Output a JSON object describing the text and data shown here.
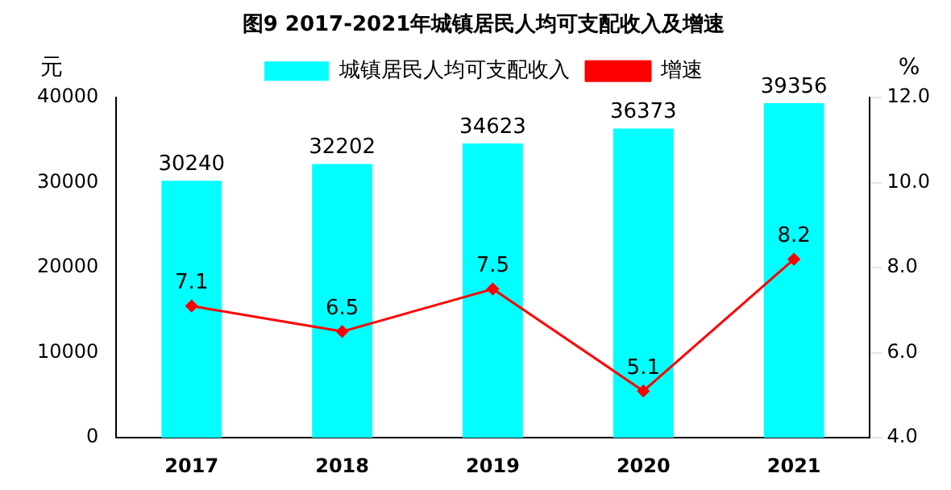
{
  "chart_data": {
    "type": "bar",
    "title": "图9 2017-2021年城镇居民人均可支配收入及增速",
    "ylabel": "元",
    "y2label": "%",
    "categories": [
      "2017",
      "2018",
      "2019",
      "2020",
      "2021"
    ],
    "series": [
      {
        "name": "城镇居民人均可支配收入",
        "color": "#00ffff",
        "values": [
          30240,
          32202,
          34623,
          36373,
          39356
        ]
      },
      {
        "name": "增速",
        "type": "line",
        "axis": "y2",
        "color": "#ff0000",
        "values": [
          7.1,
          6.5,
          7.5,
          5.1,
          8.2
        ]
      }
    ],
    "ylim": [
      0,
      40000
    ],
    "yticks": [
      0,
      10000,
      20000,
      30000,
      40000
    ],
    "y2lim": [
      4,
      12
    ],
    "y2ticks": [
      {
        "value": 4,
        "label": "4.0"
      },
      {
        "value": 6,
        "label": "6.0"
      },
      {
        "value": 8,
        "label": "8.0"
      },
      {
        "value": 10,
        "label": "10.0"
      },
      {
        "value": 12,
        "label": "12.0"
      }
    ],
    "data_labels": true,
    "legend": "top",
    "marker": "diamond",
    "grid": false
  }
}
